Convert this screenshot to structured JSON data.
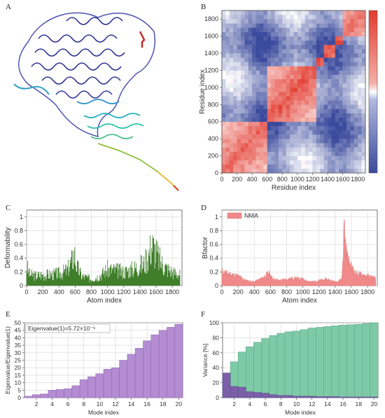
{
  "panels": {
    "A": {
      "label": "A"
    },
    "B": {
      "label": "B"
    },
    "C": {
      "label": "C"
    },
    "D": {
      "label": "D"
    },
    "E": {
      "label": "E"
    },
    "F": {
      "label": "F"
    }
  },
  "chart_data": [
    {
      "id": "B",
      "type": "heatmap",
      "xlabel": "Residue index",
      "ylabel": "Residue index",
      "xticks": [
        0,
        200,
        400,
        600,
        800,
        1000,
        1200,
        1400,
        1600,
        1800
      ],
      "yticks": [
        0,
        200,
        400,
        600,
        800,
        1000,
        1200,
        1400,
        1600,
        1800
      ],
      "xlim": [
        0,
        1900
      ],
      "ylim": [
        0,
        1900
      ],
      "colormap": [
        "#3a4a9c",
        "#ffffff",
        "#e23a2e"
      ],
      "blocks": [
        {
          "from": 0,
          "to": 600,
          "strength": 0.75
        },
        {
          "from": 600,
          "to": 1250,
          "strength": 0.85
        },
        {
          "from": 1250,
          "to": 1330,
          "strength": 0.9
        },
        {
          "from": 1330,
          "to": 1500,
          "strength": 0.85
        },
        {
          "from": 1500,
          "to": 1620,
          "strength": 0.9
        },
        {
          "from": 1620,
          "to": 1900,
          "strength": 0.7
        }
      ],
      "grid": false
    },
    {
      "id": "C",
      "type": "bar",
      "xlabel": "Atom index",
      "ylabel": "Deformability",
      "xticks": [
        0,
        200,
        400,
        600,
        800,
        1000,
        1200,
        1400,
        1600,
        1800
      ],
      "yticks": [
        0,
        0.2,
        0.4,
        0.6,
        0.8,
        1
      ],
      "ytick_labels": [
        "0",
        "0.2",
        "0.4",
        "0.6",
        "0.8",
        "1"
      ],
      "xlim": [
        0,
        1920
      ],
      "ylim": [
        0,
        1.1
      ],
      "color": "#3f7f2a",
      "profile": [
        [
          0,
          0.35
        ],
        [
          40,
          0.2
        ],
        [
          120,
          0.18
        ],
        [
          200,
          0.2
        ],
        [
          300,
          0.2
        ],
        [
          400,
          0.22
        ],
        [
          500,
          0.28
        ],
        [
          560,
          0.45
        ],
        [
          590,
          0.6
        ],
        [
          620,
          0.35
        ],
        [
          680,
          0.18
        ],
        [
          800,
          0.12
        ],
        [
          900,
          0.18
        ],
        [
          1000,
          0.3
        ],
        [
          1100,
          0.28
        ],
        [
          1200,
          0.25
        ],
        [
          1300,
          0.3
        ],
        [
          1380,
          0.35
        ],
        [
          1450,
          0.4
        ],
        [
          1500,
          0.55
        ],
        [
          1550,
          0.75
        ],
        [
          1600,
          0.6
        ],
        [
          1650,
          0.45
        ],
        [
          1700,
          0.35
        ],
        [
          1800,
          0.25
        ],
        [
          1900,
          0.2
        ]
      ],
      "grid": true
    },
    {
      "id": "D",
      "type": "area",
      "xlabel": "Atom index",
      "ylabel": "Bfactor",
      "xticks": [
        0,
        200,
        400,
        600,
        800,
        1000,
        1200,
        1400,
        1600,
        1800
      ],
      "yticks": [
        0,
        0.2,
        0.4,
        0.6,
        0.8,
        1
      ],
      "ytick_labels": [
        "0",
        "0.2",
        "0.4",
        "0.6",
        "0.8",
        "1"
      ],
      "xlim": [
        0,
        1920
      ],
      "ylim": [
        0,
        1.1
      ],
      "series": [
        {
          "name": "NMA",
          "color": "#f08a8a"
        }
      ],
      "profile": [
        [
          0,
          0.22
        ],
        [
          100,
          0.18
        ],
        [
          200,
          0.15
        ],
        [
          300,
          0.08
        ],
        [
          400,
          0.06
        ],
        [
          500,
          0.12
        ],
        [
          580,
          0.2
        ],
        [
          620,
          0.12
        ],
        [
          700,
          0.08
        ],
        [
          800,
          0.1
        ],
        [
          900,
          0.12
        ],
        [
          1000,
          0.1
        ],
        [
          1100,
          0.06
        ],
        [
          1200,
          0.08
        ],
        [
          1300,
          0.1
        ],
        [
          1400,
          0.06
        ],
        [
          1480,
          0.1
        ],
        [
          1500,
          0.55
        ],
        [
          1510,
          1.0
        ],
        [
          1530,
          0.6
        ],
        [
          1560,
          0.4
        ],
        [
          1600,
          0.3
        ],
        [
          1650,
          0.2
        ],
        [
          1700,
          0.18
        ],
        [
          1800,
          0.15
        ],
        [
          1900,
          0.12
        ]
      ],
      "legend": "top-left",
      "grid": true
    },
    {
      "id": "E",
      "type": "bar",
      "annotation": "Eigenvalue(1)=5.72×10⁻⁶",
      "xlabel": "Mode index",
      "ylabel": "Eigenvalue/Eigenvalue(1)",
      "x": [
        1,
        2,
        3,
        4,
        5,
        6,
        7,
        8,
        9,
        10,
        11,
        12,
        13,
        14,
        15,
        16,
        17,
        18,
        19,
        20
      ],
      "values": [
        1,
        2,
        2.5,
        5,
        5.5,
        6,
        8,
        12,
        14,
        16,
        19,
        20,
        25,
        29,
        33,
        38,
        42,
        45,
        47,
        49
      ],
      "xticks": [
        2,
        4,
        6,
        8,
        10,
        12,
        14,
        16,
        18,
        20
      ],
      "yticks": [
        0,
        5,
        10,
        15,
        20,
        25,
        30,
        35,
        40,
        45,
        50
      ],
      "ylim": [
        0,
        50
      ],
      "color": "#b48cd2",
      "grid": true
    },
    {
      "id": "F",
      "type": "bar",
      "xlabel": "Mode index",
      "ylabel": "Variance [%]",
      "x": [
        1,
        2,
        3,
        4,
        5,
        6,
        7,
        8,
        9,
        10,
        11,
        12,
        13,
        14,
        15,
        16,
        17,
        18,
        19,
        20
      ],
      "series": [
        {
          "values": [
            33,
            15,
            14,
            8,
            7,
            6,
            4,
            3,
            3,
            2,
            2,
            2,
            1.5,
            1.5,
            1.5,
            1,
            1,
            1,
            1,
            1
          ],
          "color": "#7b5fa8"
        },
        {
          "values": [
            33,
            48,
            61,
            68,
            74,
            79,
            83,
            86,
            88,
            89,
            91,
            93,
            94,
            95,
            96,
            97,
            97.5,
            98,
            99,
            100
          ],
          "color": "#7ec9a6"
        }
      ],
      "xticks": [
        2,
        4,
        6,
        8,
        10,
        12,
        14,
        16,
        18,
        20
      ],
      "yticks": [
        0,
        20,
        40,
        60,
        80,
        100
      ],
      "ylim": [
        0,
        100
      ],
      "grid": true
    }
  ]
}
